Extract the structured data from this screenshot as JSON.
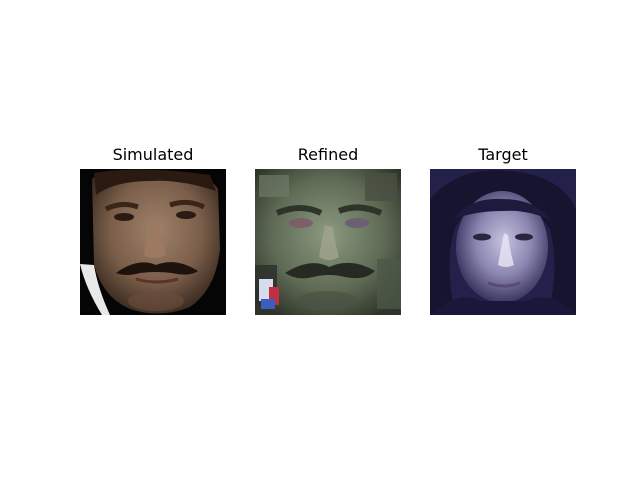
{
  "panels": [
    {
      "title": "Simulated",
      "image": "face-photo-simulated"
    },
    {
      "title": "Refined",
      "image": "face-photo-refined"
    },
    {
      "title": "Target",
      "image": "face-photo-target"
    }
  ]
}
